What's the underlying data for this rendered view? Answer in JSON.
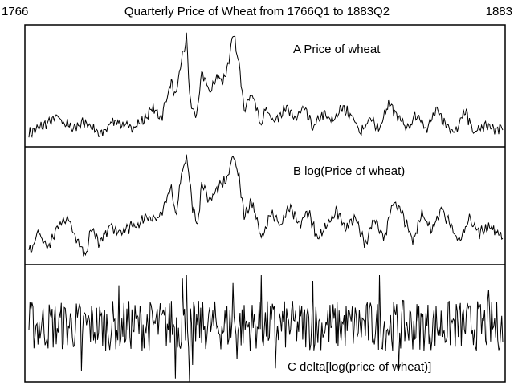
{
  "header": {
    "start_label": "1766",
    "end_label": "1883",
    "title": "Quarterly Price of Wheat from 1766Q1 to 1883Q2"
  },
  "chart_data": [
    {
      "type": "line",
      "label": "A  Price of wheat",
      "x_start": "1766Q1",
      "x_end": "1883Q2",
      "color": "#000000",
      "anchors": [
        {
          "t": 0.0,
          "v": 0.07
        },
        {
          "t": 0.03,
          "v": 0.14
        },
        {
          "t": 0.06,
          "v": 0.22
        },
        {
          "t": 0.09,
          "v": 0.12
        },
        {
          "t": 0.12,
          "v": 0.18
        },
        {
          "t": 0.15,
          "v": 0.05
        },
        {
          "t": 0.18,
          "v": 0.2
        },
        {
          "t": 0.21,
          "v": 0.12
        },
        {
          "t": 0.24,
          "v": 0.18
        },
        {
          "t": 0.26,
          "v": 0.3
        },
        {
          "t": 0.28,
          "v": 0.22
        },
        {
          "t": 0.3,
          "v": 0.55
        },
        {
          "t": 0.31,
          "v": 0.38
        },
        {
          "t": 0.32,
          "v": 0.7
        },
        {
          "t": 0.333,
          "v": 0.95
        },
        {
          "t": 0.34,
          "v": 0.35
        },
        {
          "t": 0.355,
          "v": 0.22
        },
        {
          "t": 0.365,
          "v": 0.65
        },
        {
          "t": 0.38,
          "v": 0.45
        },
        {
          "t": 0.4,
          "v": 0.6
        },
        {
          "t": 0.41,
          "v": 0.55
        },
        {
          "t": 0.42,
          "v": 0.7
        },
        {
          "t": 0.432,
          "v": 0.98
        },
        {
          "t": 0.445,
          "v": 0.65
        },
        {
          "t": 0.455,
          "v": 0.3
        },
        {
          "t": 0.47,
          "v": 0.45
        },
        {
          "t": 0.49,
          "v": 0.15
        },
        {
          "t": 0.5,
          "v": 0.3
        },
        {
          "t": 0.52,
          "v": 0.18
        },
        {
          "t": 0.54,
          "v": 0.32
        },
        {
          "t": 0.56,
          "v": 0.2
        },
        {
          "t": 0.58,
          "v": 0.3
        },
        {
          "t": 0.6,
          "v": 0.12
        },
        {
          "t": 0.62,
          "v": 0.25
        },
        {
          "t": 0.64,
          "v": 0.18
        },
        {
          "t": 0.66,
          "v": 0.3
        },
        {
          "t": 0.68,
          "v": 0.25
        },
        {
          "t": 0.7,
          "v": 0.08
        },
        {
          "t": 0.72,
          "v": 0.2
        },
        {
          "t": 0.74,
          "v": 0.12
        },
        {
          "t": 0.76,
          "v": 0.35
        },
        {
          "t": 0.78,
          "v": 0.2
        },
        {
          "t": 0.8,
          "v": 0.12
        },
        {
          "t": 0.82,
          "v": 0.25
        },
        {
          "t": 0.84,
          "v": 0.12
        },
        {
          "t": 0.86,
          "v": 0.28
        },
        {
          "t": 0.88,
          "v": 0.15
        },
        {
          "t": 0.9,
          "v": 0.1
        },
        {
          "t": 0.92,
          "v": 0.28
        },
        {
          "t": 0.94,
          "v": 0.08
        },
        {
          "t": 0.96,
          "v": 0.14
        },
        {
          "t": 0.98,
          "v": 0.1
        },
        {
          "t": 1.0,
          "v": 0.12
        }
      ]
    },
    {
      "type": "line",
      "label": "B   log(Price of wheat)",
      "x_start": "1766Q1",
      "x_end": "1883Q2",
      "color": "#000000",
      "anchors": [
        {
          "t": 0.0,
          "v": 0.08
        },
        {
          "t": 0.02,
          "v": 0.25
        },
        {
          "t": 0.04,
          "v": 0.12
        },
        {
          "t": 0.06,
          "v": 0.3
        },
        {
          "t": 0.08,
          "v": 0.4
        },
        {
          "t": 0.1,
          "v": 0.22
        },
        {
          "t": 0.12,
          "v": 0.05
        },
        {
          "t": 0.13,
          "v": 0.3
        },
        {
          "t": 0.15,
          "v": 0.15
        },
        {
          "t": 0.17,
          "v": 0.32
        },
        {
          "t": 0.19,
          "v": 0.25
        },
        {
          "t": 0.21,
          "v": 0.3
        },
        {
          "t": 0.23,
          "v": 0.32
        },
        {
          "t": 0.25,
          "v": 0.4
        },
        {
          "t": 0.27,
          "v": 0.38
        },
        {
          "t": 0.28,
          "v": 0.45
        },
        {
          "t": 0.3,
          "v": 0.65
        },
        {
          "t": 0.31,
          "v": 0.38
        },
        {
          "t": 0.32,
          "v": 0.75
        },
        {
          "t": 0.333,
          "v": 0.95
        },
        {
          "t": 0.345,
          "v": 0.5
        },
        {
          "t": 0.355,
          "v": 0.3
        },
        {
          "t": 0.365,
          "v": 0.7
        },
        {
          "t": 0.38,
          "v": 0.55
        },
        {
          "t": 0.4,
          "v": 0.65
        },
        {
          "t": 0.42,
          "v": 0.75
        },
        {
          "t": 0.432,
          "v": 0.97
        },
        {
          "t": 0.445,
          "v": 0.7
        },
        {
          "t": 0.455,
          "v": 0.4
        },
        {
          "t": 0.47,
          "v": 0.55
        },
        {
          "t": 0.49,
          "v": 0.2
        },
        {
          "t": 0.51,
          "v": 0.45
        },
        {
          "t": 0.53,
          "v": 0.32
        },
        {
          "t": 0.55,
          "v": 0.48
        },
        {
          "t": 0.57,
          "v": 0.32
        },
        {
          "t": 0.59,
          "v": 0.45
        },
        {
          "t": 0.61,
          "v": 0.18
        },
        {
          "t": 0.63,
          "v": 0.35
        },
        {
          "t": 0.65,
          "v": 0.45
        },
        {
          "t": 0.67,
          "v": 0.3
        },
        {
          "t": 0.69,
          "v": 0.4
        },
        {
          "t": 0.71,
          "v": 0.15
        },
        {
          "t": 0.73,
          "v": 0.4
        },
        {
          "t": 0.75,
          "v": 0.2
        },
        {
          "t": 0.77,
          "v": 0.55
        },
        {
          "t": 0.79,
          "v": 0.4
        },
        {
          "t": 0.81,
          "v": 0.18
        },
        {
          "t": 0.83,
          "v": 0.45
        },
        {
          "t": 0.85,
          "v": 0.25
        },
        {
          "t": 0.87,
          "v": 0.5
        },
        {
          "t": 0.89,
          "v": 0.3
        },
        {
          "t": 0.91,
          "v": 0.18
        },
        {
          "t": 0.93,
          "v": 0.4
        },
        {
          "t": 0.95,
          "v": 0.25
        },
        {
          "t": 0.97,
          "v": 0.32
        },
        {
          "t": 1.0,
          "v": 0.22
        }
      ]
    },
    {
      "type": "line",
      "label": "C   delta[log(price of wheat)]",
      "x_start": "1766Q2",
      "x_end": "1883Q2",
      "color": "#000000",
      "anchors": [
        {
          "t": 0.0,
          "v": 0.5
        },
        {
          "t": 0.05,
          "v": 0.5
        },
        {
          "t": 0.1,
          "v": 0.5
        },
        {
          "t": 0.15,
          "v": 0.5
        },
        {
          "t": 0.2,
          "v": 0.5
        },
        {
          "t": 0.25,
          "v": 0.5
        },
        {
          "t": 0.3,
          "v": 0.5
        },
        {
          "t": 0.35,
          "v": 0.5
        },
        {
          "t": 0.4,
          "v": 0.5
        },
        {
          "t": 0.45,
          "v": 0.5
        },
        {
          "t": 0.5,
          "v": 0.5
        },
        {
          "t": 0.55,
          "v": 0.5
        },
        {
          "t": 0.6,
          "v": 0.5
        },
        {
          "t": 0.65,
          "v": 0.5
        },
        {
          "t": 0.7,
          "v": 0.5
        },
        {
          "t": 0.75,
          "v": 0.5
        },
        {
          "t": 0.8,
          "v": 0.5
        },
        {
          "t": 0.85,
          "v": 0.5
        },
        {
          "t": 0.9,
          "v": 0.5
        },
        {
          "t": 0.95,
          "v": 0.5
        },
        {
          "t": 1.0,
          "v": 0.5
        }
      ],
      "spikes": [
        {
          "t": 0.11,
          "v": 0.1
        },
        {
          "t": 0.19,
          "v": 0.86
        },
        {
          "t": 0.3,
          "v": 0.72
        },
        {
          "t": 0.31,
          "v": 0.03
        },
        {
          "t": 0.325,
          "v": 0.92
        },
        {
          "t": 0.333,
          "v": 0.95
        },
        {
          "t": 0.338,
          "v": 0.0
        },
        {
          "t": 0.345,
          "v": 0.15
        },
        {
          "t": 0.43,
          "v": 0.88
        },
        {
          "t": 0.44,
          "v": 0.2
        },
        {
          "t": 0.49,
          "v": 0.95
        },
        {
          "t": 0.52,
          "v": 0.12
        },
        {
          "t": 0.6,
          "v": 0.9
        },
        {
          "t": 0.74,
          "v": 0.95
        },
        {
          "t": 0.78,
          "v": 0.1
        },
        {
          "t": 0.97,
          "v": 0.82
        },
        {
          "t": 1.0,
          "v": 0.35
        }
      ]
    }
  ]
}
